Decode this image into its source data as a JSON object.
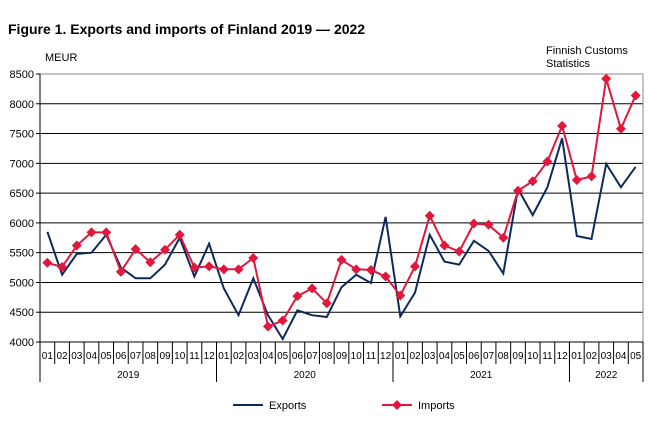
{
  "chart_data": {
    "type": "line",
    "title": "Figure 1. Exports and imports of Finland 2019 — 2022",
    "ylabel": "MEUR",
    "source": [
      "Finnish Customs",
      "Statistics"
    ],
    "ylim": [
      4000,
      8500
    ],
    "yticks": [
      4000,
      4500,
      5000,
      5500,
      6000,
      6500,
      7000,
      7500,
      8000,
      8500
    ],
    "grid": true,
    "legend": "bottom",
    "years": [
      {
        "label": "2019",
        "months": 12
      },
      {
        "label": "2020",
        "months": 12
      },
      {
        "label": "2021",
        "months": 12
      },
      {
        "label": "2022",
        "months": 5
      }
    ],
    "categories": [
      "01",
      "02",
      "03",
      "04",
      "05",
      "06",
      "07",
      "08",
      "09",
      "10",
      "11",
      "12",
      "01",
      "02",
      "03",
      "04",
      "05",
      "06",
      "07",
      "08",
      "09",
      "10",
      "11",
      "12",
      "01",
      "02",
      "03",
      "04",
      "05",
      "06",
      "07",
      "08",
      "09",
      "10",
      "11",
      "12",
      "01",
      "02",
      "03",
      "04",
      "05"
    ],
    "series": [
      {
        "name": "Exports",
        "color": "#0d2a5c",
        "marker": "none",
        "values": [
          5850,
          5130,
          5480,
          5500,
          5800,
          5250,
          5070,
          5070,
          5300,
          5750,
          5100,
          5650,
          4900,
          4450,
          5070,
          4450,
          4050,
          4530,
          4450,
          4420,
          4920,
          5130,
          4990,
          6100,
          4430,
          4830,
          5800,
          5350,
          5300,
          5700,
          5530,
          5150,
          6570,
          6130,
          6600,
          7420,
          5780,
          5730,
          6990,
          6600,
          6940
        ]
      },
      {
        "name": "Imports",
        "color": "#e0183c",
        "marker": "diamond",
        "values": [
          5330,
          5260,
          5620,
          5840,
          5840,
          5180,
          5560,
          5340,
          5550,
          5800,
          5250,
          5270,
          5220,
          5220,
          5410,
          4260,
          4360,
          4770,
          4900,
          4650,
          5380,
          5220,
          5210,
          5100,
          4780,
          5270,
          6120,
          5620,
          5520,
          5990,
          5970,
          5750,
          6540,
          6700,
          7030,
          7630,
          6720,
          6780,
          8420,
          7580,
          8140
        ]
      }
    ]
  }
}
